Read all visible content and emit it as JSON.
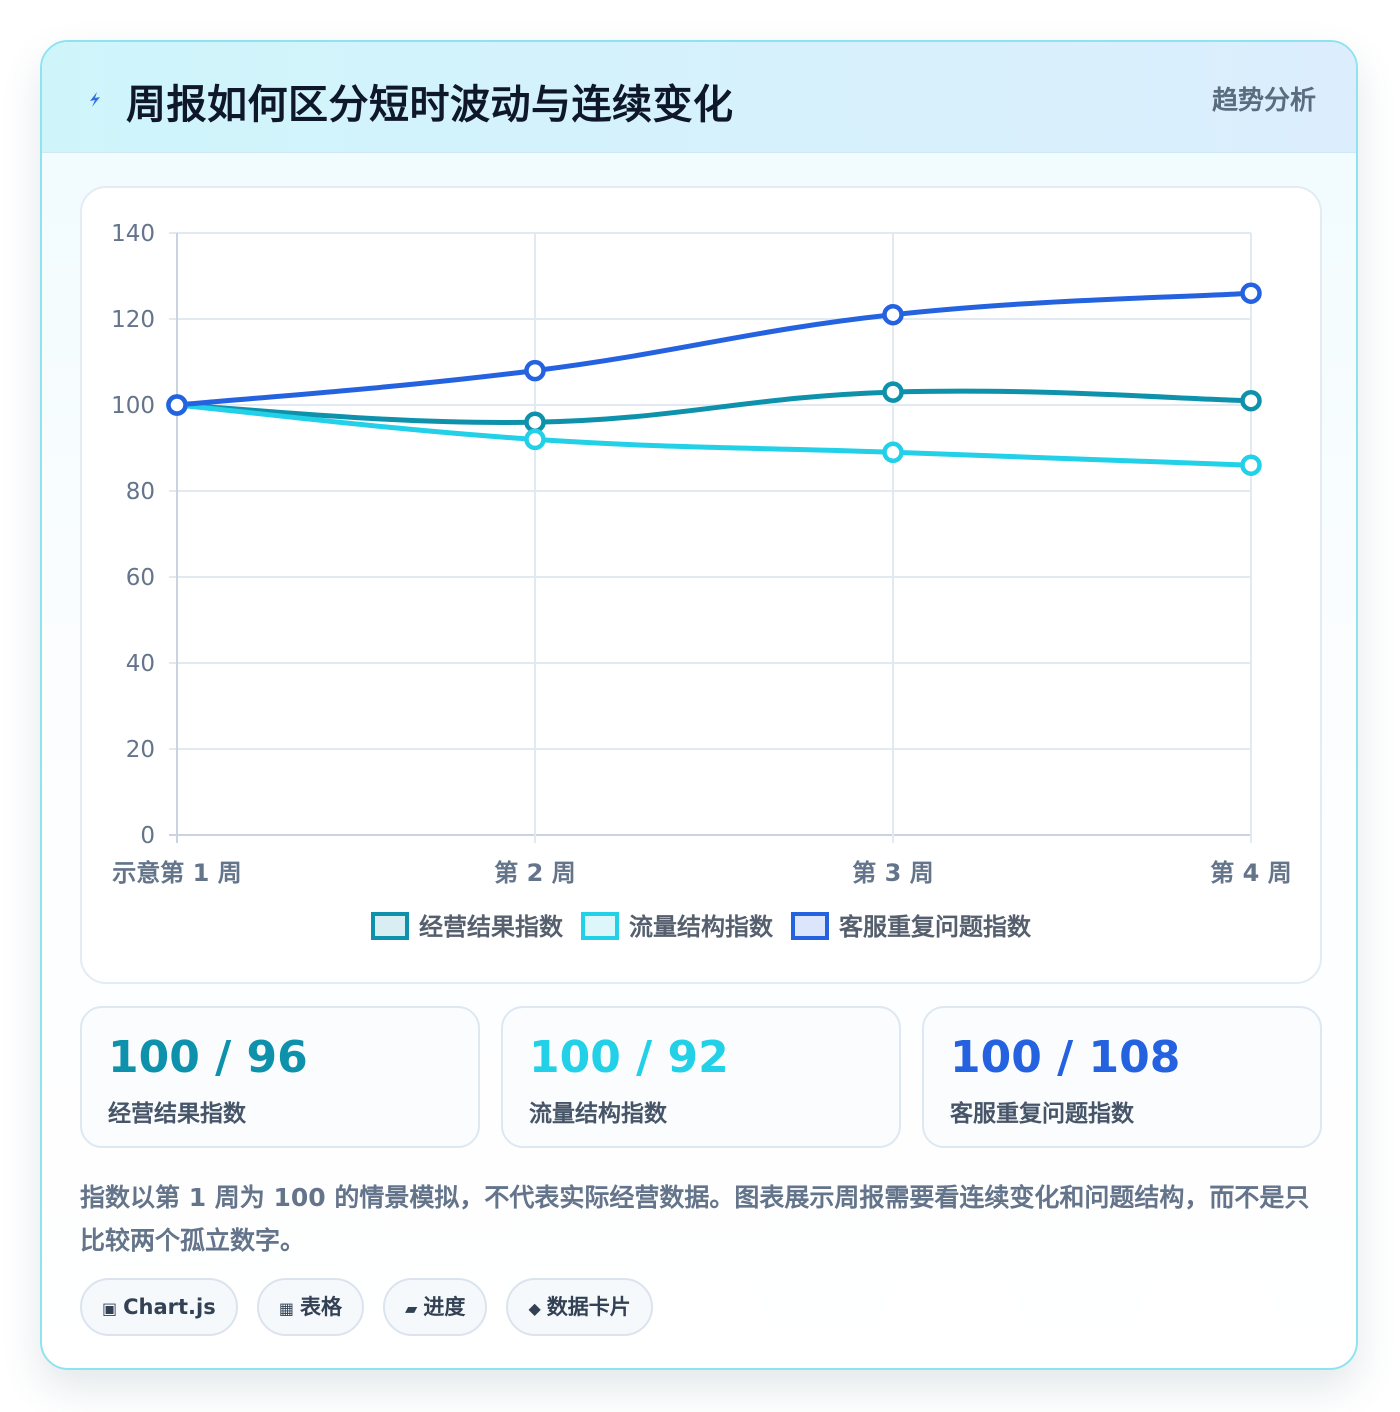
{
  "header": {
    "title": "周报如何区分短时波动与连续变化",
    "badge": "趋势分析",
    "icon": "lightning-icon"
  },
  "chart_data": {
    "type": "line",
    "categories": [
      "示意第 1 周",
      "第 2 周",
      "第 3 周",
      "第 4 周"
    ],
    "ylim": [
      0,
      140
    ],
    "yticks": [
      "0",
      "20",
      "40",
      "60",
      "80",
      "100",
      "120",
      "140"
    ],
    "grid": true,
    "legend_position": "bottom",
    "series": [
      {
        "name": "经营结果指数",
        "values": [
          100,
          96,
          103,
          101
        ],
        "color": "#0e91ab",
        "fill": "#d8eef3"
      },
      {
        "name": "流量结构指数",
        "values": [
          100,
          92,
          89,
          86
        ],
        "color": "#22d0e8",
        "fill": "#dcf6fa"
      },
      {
        "name": "客服重复问题指数",
        "values": [
          100,
          108,
          121,
          126
        ],
        "color": "#2462e0",
        "fill": "#dbe5fb"
      }
    ]
  },
  "stats": [
    {
      "value": "100 / 96",
      "label": "经营结果指数",
      "color": "#0e91ab"
    },
    {
      "value": "100 / 92",
      "label": "流量结构指数",
      "color": "#22d0e8"
    },
    {
      "value": "100 / 108",
      "label": "客服重复问题指数",
      "color": "#2462e0"
    }
  ],
  "note": "指数以第 1 周为 100 的情景模拟，不代表实际经营数据。图表展示周报需要看连续变化和问题结构，而不是只比较两个孤立数字。",
  "tags": [
    {
      "icon": "▣",
      "icon_name": "chart-icon",
      "label": "Chart.js"
    },
    {
      "icon": "▦",
      "icon_name": "table-icon",
      "label": "表格"
    },
    {
      "icon": "▰",
      "icon_name": "progress-icon",
      "label": "进度"
    },
    {
      "icon": "◆",
      "icon_name": "card-icon",
      "label": "数据卡片"
    }
  ]
}
